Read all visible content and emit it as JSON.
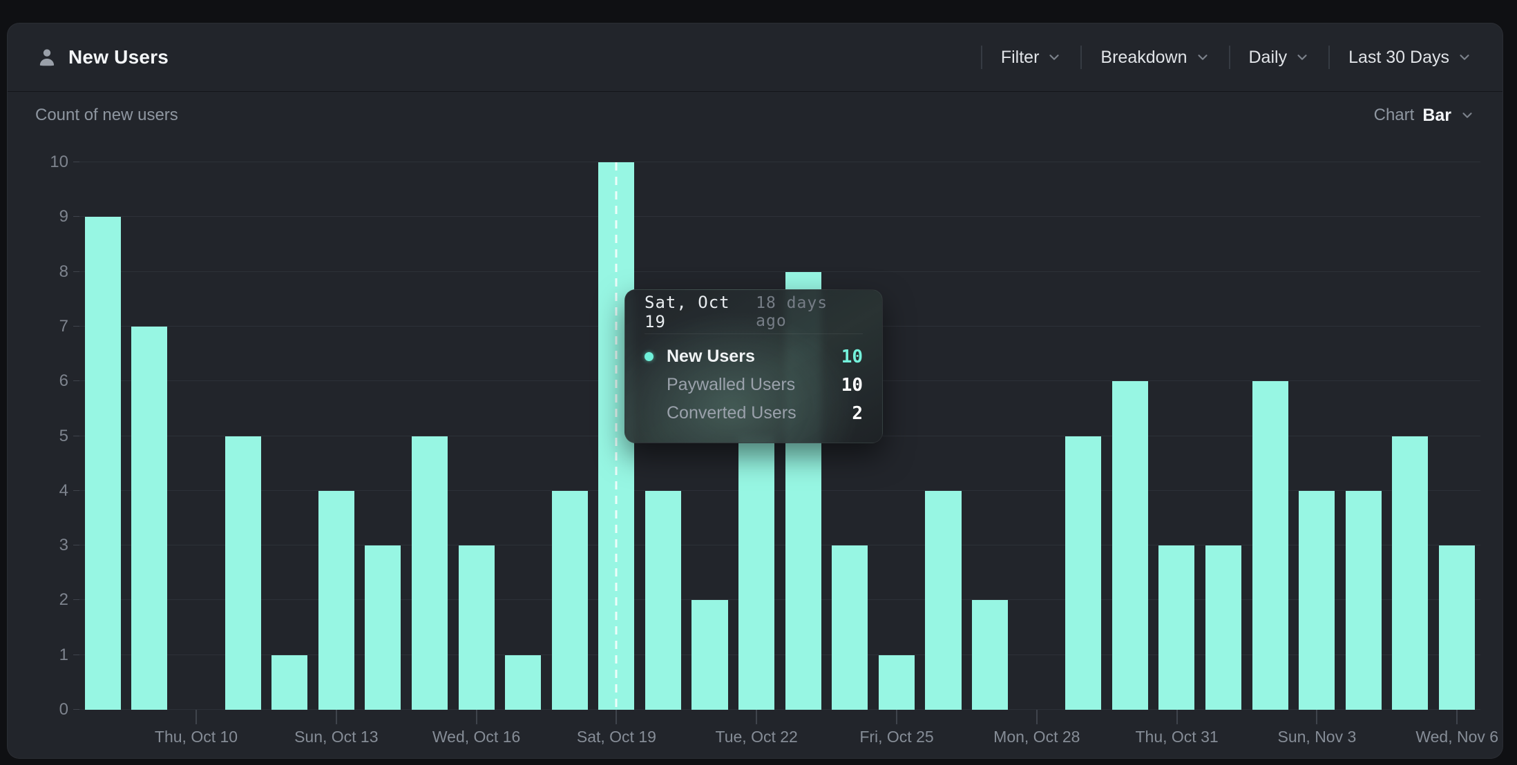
{
  "header": {
    "title": "New Users",
    "controls": [
      {
        "label": "Filter"
      },
      {
        "label": "Breakdown"
      },
      {
        "label": "Daily"
      },
      {
        "label": "Last 30 Days"
      }
    ]
  },
  "subheader": {
    "metric_label": "Count of new users",
    "chart_label": "Chart",
    "chart_type_value": "Bar"
  },
  "tooltip": {
    "date": "Sat, Oct 19",
    "relative": "18 days ago",
    "rows": [
      {
        "label": "New Users",
        "value": "10"
      },
      {
        "label": "Paywalled Users",
        "value": "10"
      },
      {
        "label": "Converted Users",
        "value": "2"
      }
    ]
  },
  "colors": {
    "accent_bar": "#97F6E3",
    "accent_value_text": "#74F2DB",
    "panel_background": "#22252B",
    "page_background": "#0F1013",
    "gridline": "#2D3138"
  },
  "chart_data": {
    "type": "bar",
    "title": "Count of new users",
    "x": [
      "Oct 8",
      "Oct 9",
      "Oct 10",
      "Oct 11",
      "Oct 12",
      "Oct 13",
      "Oct 14",
      "Oct 15",
      "Oct 16",
      "Oct 17",
      "Oct 18",
      "Oct 19",
      "Oct 20",
      "Oct 21",
      "Oct 22",
      "Oct 23",
      "Oct 24",
      "Oct 25",
      "Oct 26",
      "Oct 27",
      "Oct 28",
      "Oct 29",
      "Oct 30",
      "Oct 31",
      "Nov 1",
      "Nov 2",
      "Nov 3",
      "Nov 4",
      "Nov 5",
      "Nov 6"
    ],
    "values": [
      9,
      7,
      0,
      5,
      1,
      4,
      3,
      5,
      3,
      1,
      4,
      10,
      4,
      2,
      5,
      8,
      3,
      1,
      4,
      2,
      0,
      5,
      6,
      3,
      3,
      6,
      4,
      4,
      5,
      3
    ],
    "highlighted_index": 11,
    "ylabel": "",
    "xlabel": "",
    "ylim": [
      0,
      10
    ],
    "y_ticks": [
      0,
      1,
      2,
      3,
      4,
      5,
      6,
      7,
      8,
      9,
      10
    ],
    "x_ticks": [
      {
        "index": 2,
        "label": "Thu, Oct 10"
      },
      {
        "index": 5,
        "label": "Sun, Oct 13"
      },
      {
        "index": 8,
        "label": "Wed, Oct 16"
      },
      {
        "index": 11,
        "label": "Sat, Oct 19"
      },
      {
        "index": 14,
        "label": "Tue, Oct 22"
      },
      {
        "index": 17,
        "label": "Fri, Oct 25"
      },
      {
        "index": 20,
        "label": "Mon, Oct 28"
      },
      {
        "index": 23,
        "label": "Thu, Oct 31"
      },
      {
        "index": 26,
        "label": "Sun, Nov 3"
      },
      {
        "index": 29,
        "label": "Wed, Nov 6"
      }
    ],
    "grid": "horizontal",
    "legend": "none"
  }
}
